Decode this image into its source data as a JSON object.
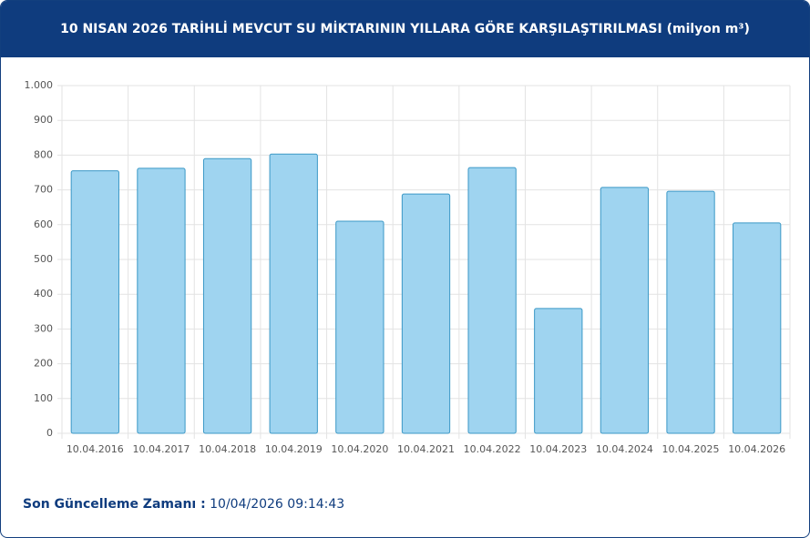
{
  "header": {
    "title": "10 NISAN 2026 TARİHLİ MEVCUT SU MİKTARININ YILLARA GÖRE KARŞILAŞTIRILMASI (milyon m³)"
  },
  "chart_data": {
    "type": "bar",
    "categories": [
      "10.04.2016",
      "10.04.2017",
      "10.04.2018",
      "10.04.2019",
      "10.04.2020",
      "10.04.2021",
      "10.04.2022",
      "10.04.2023",
      "10.04.2024",
      "10.04.2025",
      "10.04.2026"
    ],
    "values": [
      755,
      762,
      790,
      803,
      610,
      688,
      764,
      359,
      707,
      696,
      605
    ],
    "color": "#9fd4f0",
    "border_color": "#3b98c6",
    "ylim": [
      0,
      1000
    ],
    "yticks": [
      0,
      100,
      200,
      300,
      400,
      500,
      600,
      700,
      800,
      900,
      {
        "value": 1000,
        "label": "1.000"
      }
    ],
    "grid": true
  },
  "footer": {
    "label": "Son Güncelleme Zamanı :",
    "value": "10/04/2026 09:14:43"
  }
}
